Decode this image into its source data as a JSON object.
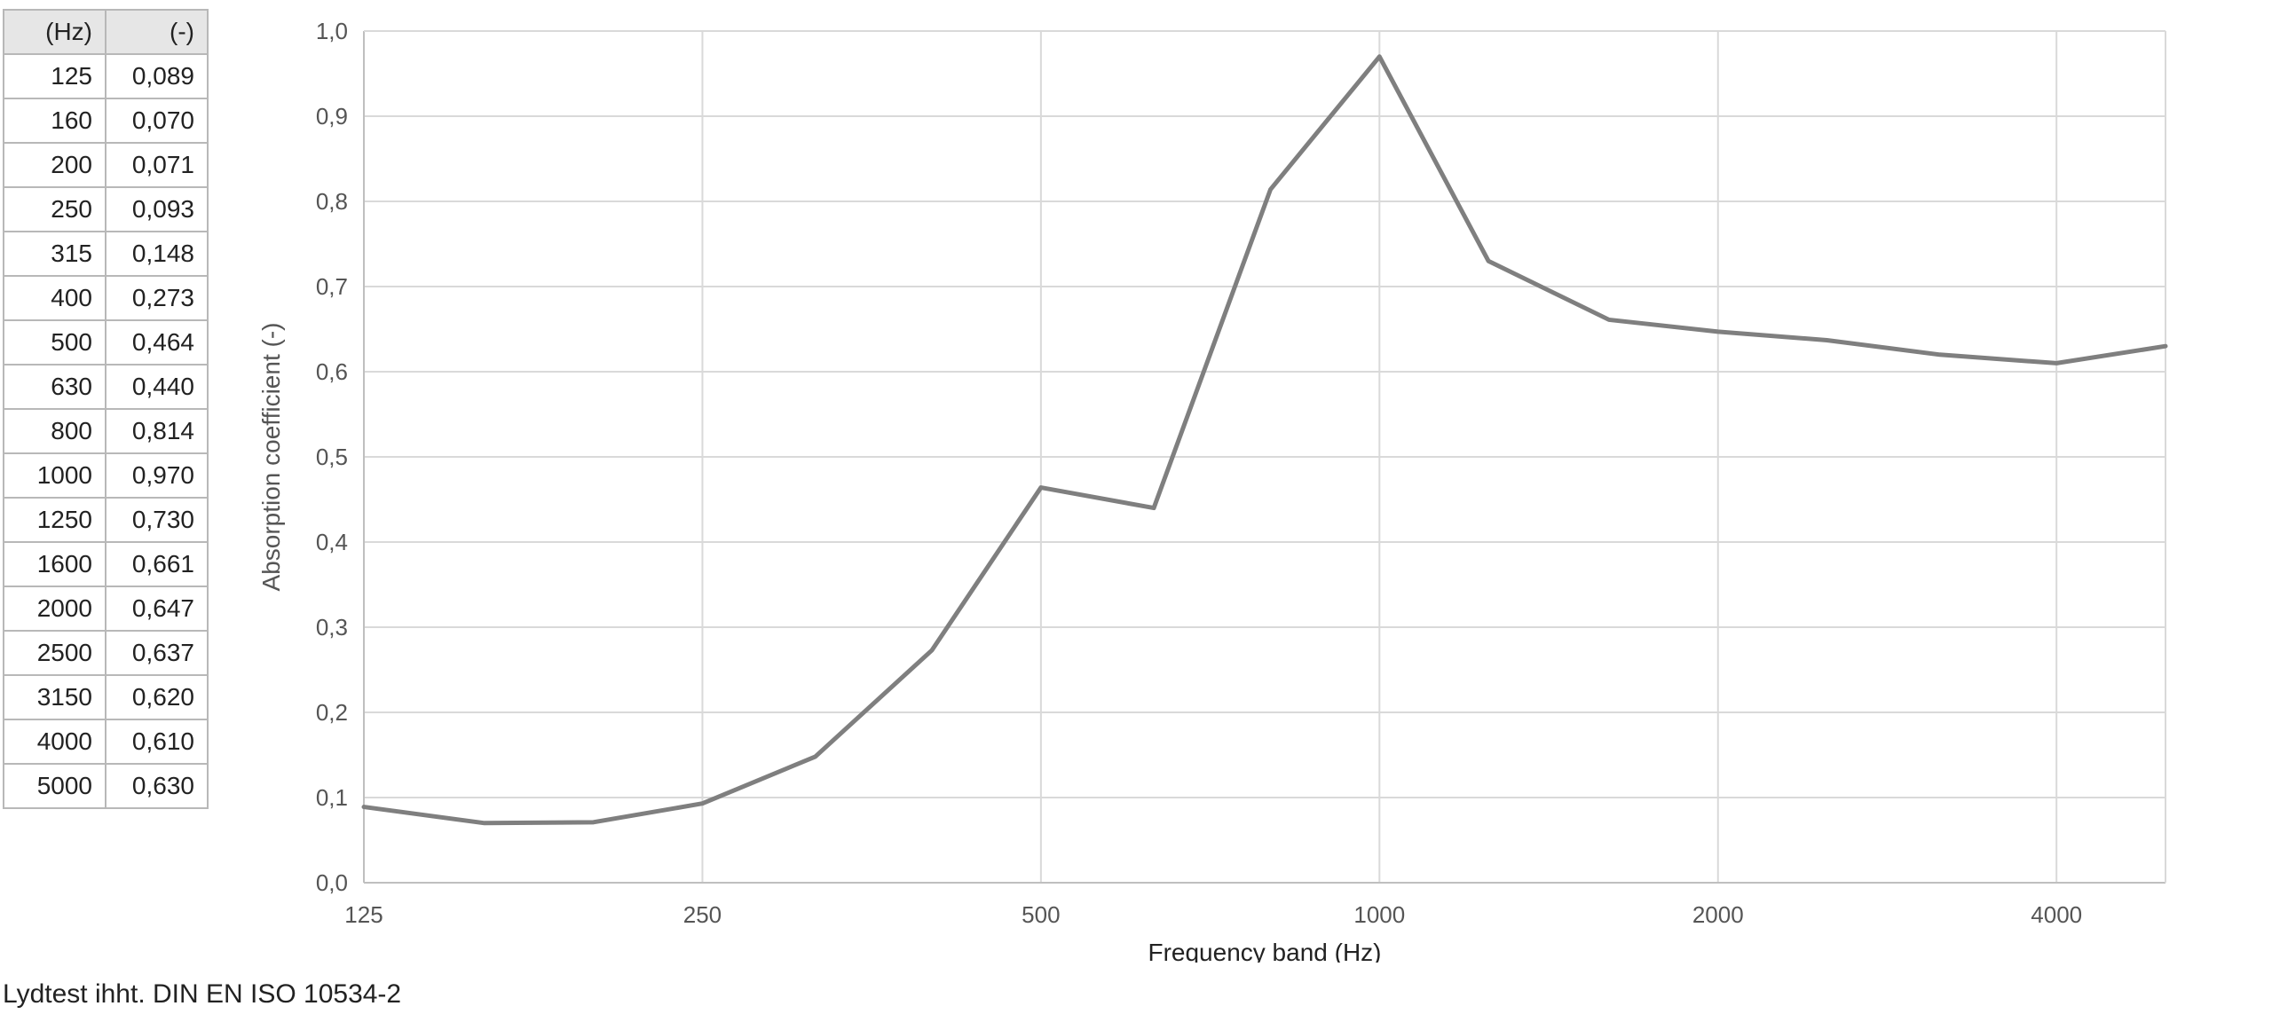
{
  "table": {
    "header_hz": "(Hz)",
    "header_coef": "(-)",
    "rows": [
      {
        "hz": "125",
        "coef": "0,089"
      },
      {
        "hz": "160",
        "coef": "0,070"
      },
      {
        "hz": "200",
        "coef": "0,071"
      },
      {
        "hz": "250",
        "coef": "0,093"
      },
      {
        "hz": "315",
        "coef": "0,148"
      },
      {
        "hz": "400",
        "coef": "0,273"
      },
      {
        "hz": "500",
        "coef": "0,464"
      },
      {
        "hz": "630",
        "coef": "0,440"
      },
      {
        "hz": "800",
        "coef": "0,814"
      },
      {
        "hz": "1000",
        "coef": "0,970"
      },
      {
        "hz": "1250",
        "coef": "0,730"
      },
      {
        "hz": "1600",
        "coef": "0,661"
      },
      {
        "hz": "2000",
        "coef": "0,647"
      },
      {
        "hz": "2500",
        "coef": "0,637"
      },
      {
        "hz": "3150",
        "coef": "0,620"
      },
      {
        "hz": "4000",
        "coef": "0,610"
      },
      {
        "hz": "5000",
        "coef": "0,630"
      }
    ]
  },
  "chart": {
    "type": "line",
    "ylabel": "Absorption coefficient (-)",
    "xlabel": "Frequency band (Hz)",
    "ylim": [
      0.0,
      1.0
    ],
    "ytick_step": 0.1,
    "ytick_labels": [
      "0,0",
      "0,1",
      "0,2",
      "0,3",
      "0,4",
      "0,5",
      "0,6",
      "0,7",
      "0,8",
      "0,9",
      "1,0"
    ],
    "x_ticks": [
      125,
      250,
      500,
      1000,
      2000,
      4000
    ],
    "x_tick_labels": [
      "125",
      "250",
      "500",
      "1000",
      "2000",
      "4000"
    ],
    "x_scale": "log",
    "series_hz": [
      125,
      160,
      200,
      250,
      315,
      400,
      500,
      630,
      800,
      1000,
      1250,
      1600,
      2000,
      2500,
      3150,
      4000,
      5000
    ],
    "series_y": [
      0.089,
      0.07,
      0.071,
      0.093,
      0.148,
      0.273,
      0.464,
      0.44,
      0.814,
      0.97,
      0.73,
      0.661,
      0.647,
      0.637,
      0.62,
      0.61,
      0.63
    ],
    "line_color": "#7f7f7f",
    "line_width": 5,
    "grid_color": "#d9d9d9",
    "axis_color": "#bfbfbf",
    "background_color": "#ffffff",
    "tick_font_size": 26,
    "tick_color": "#555555",
    "label_font_size": 28
  },
  "footer_text": "Lydtest ihht. DIN EN ISO 10534-2"
}
